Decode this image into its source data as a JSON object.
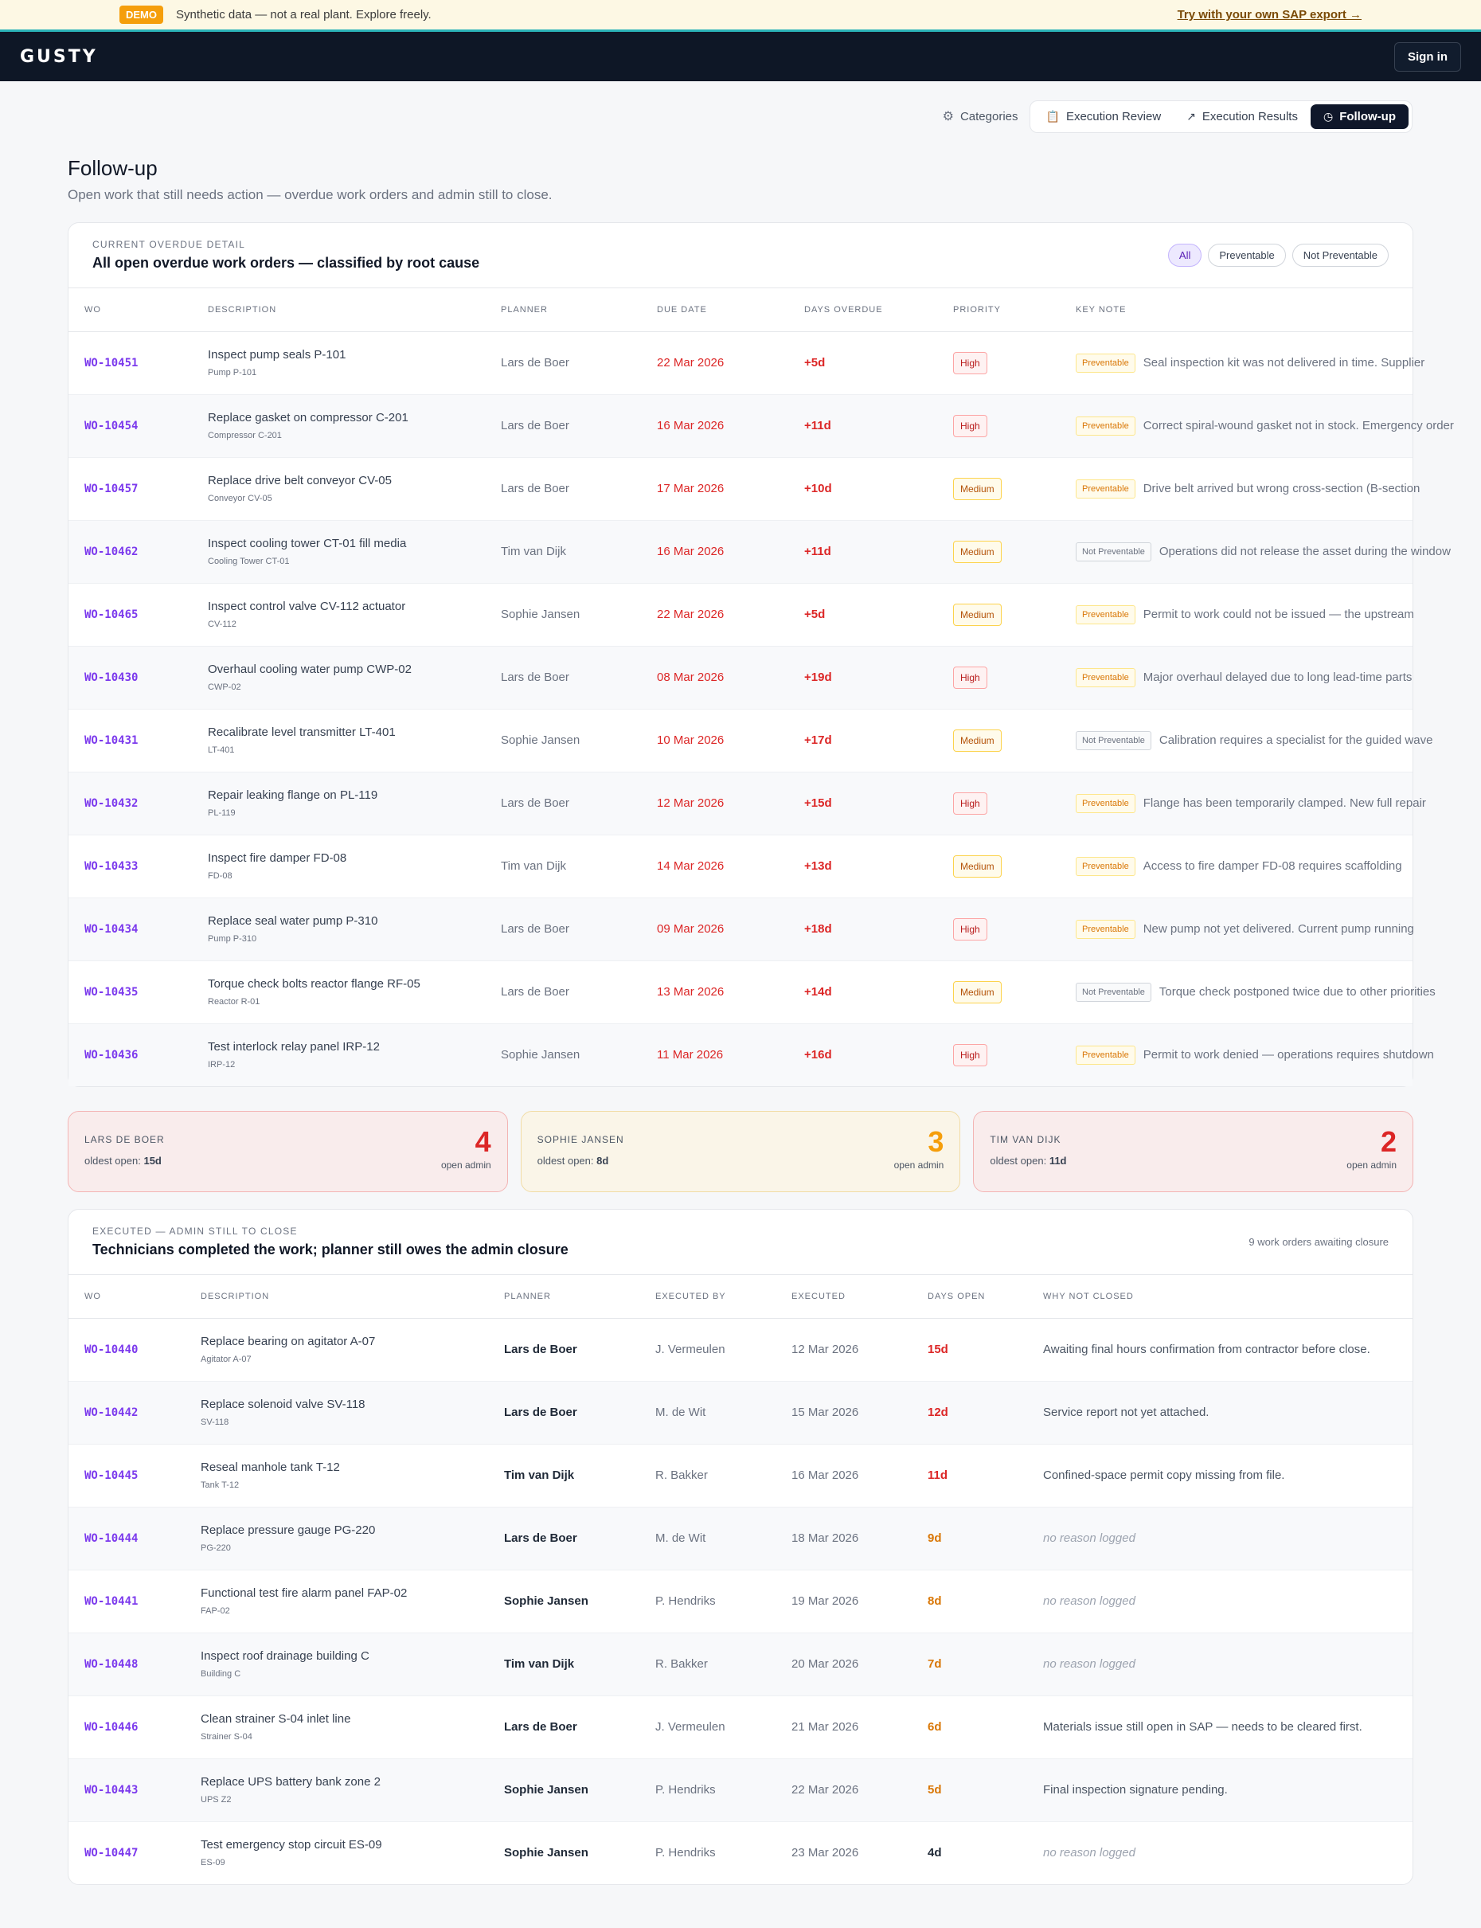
{
  "banner": {
    "badge": "DEMO",
    "message": "Synthetic data — not a real plant. Explore freely.",
    "link": "Try with your own SAP export →"
  },
  "nav": {
    "logo": "GUSTY",
    "signin": "Sign in"
  },
  "tabs": {
    "categories": "Categories",
    "execution_review": "Execution Review",
    "execution_results": "Execution Results",
    "followup": "Follow-up"
  },
  "page": {
    "title": "Follow-up",
    "subtitle": "Open work that still needs action — overdue work orders and admin still to close."
  },
  "overdue": {
    "eyebrow": "CURRENT OVERDUE DETAIL",
    "title": "All open overdue work orders — classified by root cause",
    "filters": [
      "All",
      "Preventable",
      "Not Preventable"
    ],
    "columns": [
      "WO",
      "DESCRIPTION",
      "PLANNER",
      "DUE DATE",
      "DAYS OVERDUE",
      "PRIORITY",
      "KEY NOTE"
    ],
    "rows": [
      {
        "wo": "WO-10451",
        "desc": "Inspect pump seals P-101",
        "asset": "Pump P-101",
        "planner": "Lars de Boer",
        "due": "22 Mar 2026",
        "days": "+5d",
        "priority": "High",
        "tag": "Preventable",
        "note": "Seal inspection kit was not delivered in time. Supplier"
      },
      {
        "wo": "WO-10454",
        "desc": "Replace gasket on compressor C-201",
        "asset": "Compressor C-201",
        "planner": "Lars de Boer",
        "due": "16 Mar 2026",
        "days": "+11d",
        "priority": "High",
        "tag": "Preventable",
        "note": "Correct spiral-wound gasket not in stock. Emergency order"
      },
      {
        "wo": "WO-10457",
        "desc": "Replace drive belt conveyor CV-05",
        "asset": "Conveyor CV-05",
        "planner": "Lars de Boer",
        "due": "17 Mar 2026",
        "days": "+10d",
        "priority": "Medium",
        "tag": "Preventable",
        "note": "Drive belt arrived but wrong cross-section (B-section"
      },
      {
        "wo": "WO-10462",
        "desc": "Inspect cooling tower CT-01 fill media",
        "asset": "Cooling Tower CT-01",
        "planner": "Tim van Dijk",
        "due": "16 Mar 2026",
        "days": "+11d",
        "priority": "Medium",
        "tag": "Not Preventable",
        "note": "Operations did not release the asset during the window"
      },
      {
        "wo": "WO-10465",
        "desc": "Inspect control valve CV-112 actuator",
        "asset": "CV-112",
        "planner": "Sophie Jansen",
        "due": "22 Mar 2026",
        "days": "+5d",
        "priority": "Medium",
        "tag": "Preventable",
        "note": "Permit to work could not be issued — the upstream"
      },
      {
        "wo": "WO-10430",
        "desc": "Overhaul cooling water pump CWP-02",
        "asset": "CWP-02",
        "planner": "Lars de Boer",
        "due": "08 Mar 2026",
        "days": "+19d",
        "priority": "High",
        "tag": "Preventable",
        "note": "Major overhaul delayed due to long lead-time parts"
      },
      {
        "wo": "WO-10431",
        "desc": "Recalibrate level transmitter LT-401",
        "asset": "LT-401",
        "planner": "Sophie Jansen",
        "due": "10 Mar 2026",
        "days": "+17d",
        "priority": "Medium",
        "tag": "Not Preventable",
        "note": "Calibration requires a specialist for the guided wave"
      },
      {
        "wo": "WO-10432",
        "desc": "Repair leaking flange on PL-119",
        "asset": "PL-119",
        "planner": "Lars de Boer",
        "due": "12 Mar 2026",
        "days": "+15d",
        "priority": "High",
        "tag": "Preventable",
        "note": "Flange has been temporarily clamped. New full repair"
      },
      {
        "wo": "WO-10433",
        "desc": "Inspect fire damper FD-08",
        "asset": "FD-08",
        "planner": "Tim van Dijk",
        "due": "14 Mar 2026",
        "days": "+13d",
        "priority": "Medium",
        "tag": "Preventable",
        "note": "Access to fire damper FD-08 requires scaffolding"
      },
      {
        "wo": "WO-10434",
        "desc": "Replace seal water pump P-310",
        "asset": "Pump P-310",
        "planner": "Lars de Boer",
        "due": "09 Mar 2026",
        "days": "+18d",
        "priority": "High",
        "tag": "Preventable",
        "note": "New pump not yet delivered. Current pump running"
      },
      {
        "wo": "WO-10435",
        "desc": "Torque check bolts reactor flange RF-05",
        "asset": "Reactor R-01",
        "planner": "Lars de Boer",
        "due": "13 Mar 2026",
        "days": "+14d",
        "priority": "Medium",
        "tag": "Not Preventable",
        "note": "Torque check postponed twice due to other priorities"
      },
      {
        "wo": "WO-10436",
        "desc": "Test interlock relay panel IRP-12",
        "asset": "IRP-12",
        "planner": "Sophie Jansen",
        "due": "11 Mar 2026",
        "days": "+16d",
        "priority": "High",
        "tag": "Preventable",
        "note": "Permit to work denied — operations requires shutdown"
      }
    ]
  },
  "admin_cards": [
    {
      "name": "LARS DE BOER",
      "oldest_label": "oldest open:",
      "oldest": "15d",
      "count": "4",
      "count_label": "open admin",
      "tone": "red"
    },
    {
      "name": "SOPHIE JANSEN",
      "oldest_label": "oldest open:",
      "oldest": "8d",
      "count": "3",
      "count_label": "open admin",
      "tone": "amber"
    },
    {
      "name": "TIM VAN DIJK",
      "oldest_label": "oldest open:",
      "oldest": "11d",
      "count": "2",
      "count_label": "open admin",
      "tone": "red"
    }
  ],
  "executed": {
    "eyebrow": "EXECUTED — ADMIN STILL TO CLOSE",
    "title": "Technicians completed the work; planner still owes the admin closure",
    "meta": "9 work orders awaiting closure",
    "columns": [
      "WO",
      "DESCRIPTION",
      "PLANNER",
      "EXECUTED BY",
      "EXECUTED",
      "DAYS OPEN",
      "WHY NOT CLOSED"
    ],
    "rows": [
      {
        "wo": "WO-10440",
        "desc": "Replace bearing on agitator A-07",
        "asset": "Agitator A-07",
        "planner": "Lars de Boer",
        "by": "J. Vermeulen",
        "executed": "12 Mar 2026",
        "days": "15d",
        "tone": "red",
        "reason": "Awaiting final hours confirmation from contractor before close."
      },
      {
        "wo": "WO-10442",
        "desc": "Replace solenoid valve SV-118",
        "asset": "SV-118",
        "planner": "Lars de Boer",
        "by": "M. de Wit",
        "executed": "15 Mar 2026",
        "days": "12d",
        "tone": "red",
        "reason": "Service report not yet attached."
      },
      {
        "wo": "WO-10445",
        "desc": "Reseal manhole tank T-12",
        "asset": "Tank T-12",
        "planner": "Tim van Dijk",
        "by": "R. Bakker",
        "executed": "16 Mar 2026",
        "days": "11d",
        "tone": "red",
        "reason": "Confined-space permit copy missing from file."
      },
      {
        "wo": "WO-10444",
        "desc": "Replace pressure gauge PG-220",
        "asset": "PG-220",
        "planner": "Lars de Boer",
        "by": "M. de Wit",
        "executed": "18 Mar 2026",
        "days": "9d",
        "tone": "orange",
        "reason": "no reason logged"
      },
      {
        "wo": "WO-10441",
        "desc": "Functional test fire alarm panel FAP-02",
        "asset": "FAP-02",
        "planner": "Sophie Jansen",
        "by": "P. Hendriks",
        "executed": "19 Mar 2026",
        "days": "8d",
        "tone": "orange",
        "reason": "no reason logged"
      },
      {
        "wo": "WO-10448",
        "desc": "Inspect roof drainage building C",
        "asset": "Building C",
        "planner": "Tim van Dijk",
        "by": "R. Bakker",
        "executed": "20 Mar 2026",
        "days": "7d",
        "tone": "orange",
        "reason": "no reason logged"
      },
      {
        "wo": "WO-10446",
        "desc": "Clean strainer S-04 inlet line",
        "asset": "Strainer S-04",
        "planner": "Lars de Boer",
        "by": "J. Vermeulen",
        "executed": "21 Mar 2026",
        "days": "6d",
        "tone": "orange",
        "reason": "Materials issue still open in SAP — needs to be cleared first."
      },
      {
        "wo": "WO-10443",
        "desc": "Replace UPS battery bank zone 2",
        "asset": "UPS Z2",
        "planner": "Sophie Jansen",
        "by": "P. Hendriks",
        "executed": "22 Mar 2026",
        "days": "5d",
        "tone": "orange",
        "reason": "Final inspection signature pending."
      },
      {
        "wo": "WO-10447",
        "desc": "Test emergency stop circuit ES-09",
        "asset": "ES-09",
        "planner": "Sophie Jansen",
        "by": "P. Hendriks",
        "executed": "23 Mar 2026",
        "days": "4d",
        "tone": "dark",
        "reason": "no reason logged"
      }
    ]
  }
}
